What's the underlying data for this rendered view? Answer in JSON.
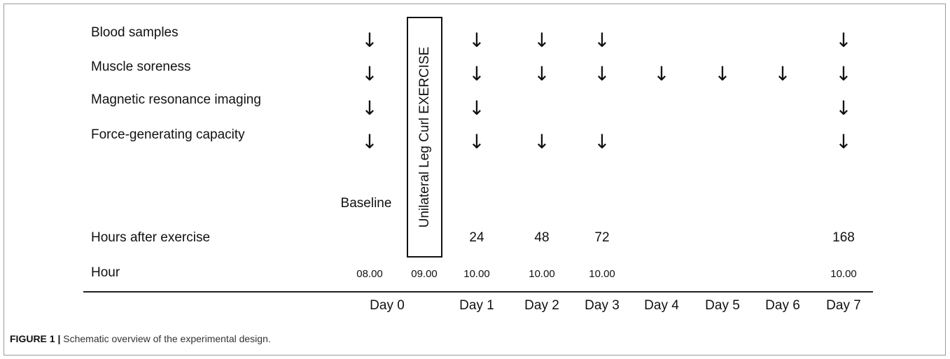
{
  "rows": [
    {
      "label": "Blood samples",
      "days": [
        "Day 0",
        "Day 1",
        "Day 2",
        "Day 3",
        "Day 7"
      ]
    },
    {
      "label": "Muscle soreness",
      "days": [
        "Day 0",
        "Day 1",
        "Day 2",
        "Day 3",
        "Day 4",
        "Day 5",
        "Day 6",
        "Day 7"
      ]
    },
    {
      "label": "Magnetic resonance imaging",
      "days": [
        "Day 0",
        "Day 1",
        "Day 7"
      ]
    },
    {
      "label": "Force-generating capacity",
      "days": [
        "Day 0",
        "Day 1",
        "Day 2",
        "Day 3",
        "Day 7"
      ]
    }
  ],
  "arrow_glyph": "↓",
  "exercise_label": "Unilateral Leg Curl EXERCISE",
  "baseline_label": "Baseline",
  "hours_after_label": "Hours after exercise",
  "hour_label": "Hour",
  "hours_after_values": {
    "Day 1": "24",
    "Day 2": "48",
    "Day 3": "72",
    "Day 7": "168"
  },
  "hour_values": {
    "baseline": "08.00",
    "exercise": "09.00",
    "Day 1": "10.00",
    "Day 2": "10.00",
    "Day 3": "10.00",
    "Day 7": "10.00"
  },
  "days": [
    "Day 0",
    "Day 1",
    "Day 2",
    "Day 3",
    "Day 4",
    "Day 5",
    "Day 6",
    "Day 7"
  ],
  "caption": {
    "prefix": "FIGURE 1 |",
    "text": " Schematic overview of the experimental design."
  }
}
